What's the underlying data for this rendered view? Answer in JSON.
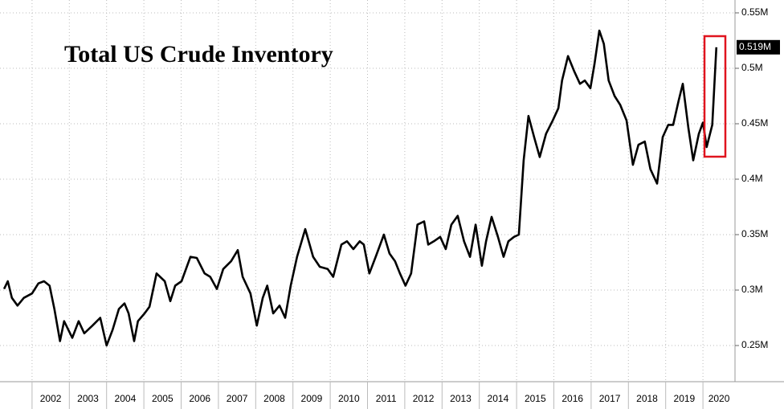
{
  "chart_data": {
    "type": "line",
    "title": "Total US Crude Inventory",
    "x": [
      2001.25,
      2001.35,
      2001.46,
      2001.61,
      2001.78,
      2002.0,
      2002.17,
      2002.32,
      2002.47,
      2002.6,
      2002.75,
      2002.86,
      2003.08,
      2003.25,
      2003.4,
      2003.62,
      2003.83,
      2004.0,
      2004.16,
      2004.33,
      2004.48,
      2004.59,
      2004.74,
      2004.84,
      2005.02,
      2005.15,
      2005.34,
      2005.56,
      2005.71,
      2005.84,
      2006.01,
      2006.25,
      2006.42,
      2006.63,
      2006.78,
      2006.96,
      2007.13,
      2007.34,
      2007.52,
      2007.65,
      2007.86,
      2008.03,
      2008.19,
      2008.31,
      2008.47,
      2008.64,
      2008.79,
      2008.94,
      2009.11,
      2009.33,
      2009.54,
      2009.72,
      2009.93,
      2010.08,
      2010.3,
      2010.45,
      2010.62,
      2010.79,
      2010.9,
      2011.05,
      2011.22,
      2011.44,
      2011.59,
      2011.74,
      2011.87,
      2012.02,
      2012.17,
      2012.34,
      2012.52,
      2012.63,
      2012.78,
      2012.95,
      2013.1,
      2013.25,
      2013.42,
      2013.59,
      2013.75,
      2013.9,
      2014.07,
      2014.18,
      2014.33,
      2014.5,
      2014.65,
      2014.78,
      2014.93,
      2015.06,
      2015.19,
      2015.32,
      2015.47,
      2015.62,
      2015.79,
      2015.97,
      2016.12,
      2016.22,
      2016.38,
      2016.55,
      2016.7,
      2016.83,
      2016.98,
      2017.09,
      2017.22,
      2017.34,
      2017.47,
      2017.63,
      2017.78,
      2017.95,
      2018.12,
      2018.27,
      2018.44,
      2018.59,
      2018.77,
      2018.92,
      2019.07,
      2019.2,
      2019.35,
      2019.46,
      2019.61,
      2019.74,
      2019.89,
      2020.0,
      2020.1,
      2020.25,
      2020.36
    ],
    "values": [
      0.301,
      0.308,
      0.293,
      0.286,
      0.293,
      0.297,
      0.306,
      0.308,
      0.304,
      0.283,
      0.254,
      0.272,
      0.257,
      0.272,
      0.261,
      0.268,
      0.275,
      0.25,
      0.264,
      0.283,
      0.288,
      0.279,
      0.254,
      0.272,
      0.279,
      0.285,
      0.315,
      0.308,
      0.29,
      0.304,
      0.308,
      0.33,
      0.329,
      0.315,
      0.312,
      0.301,
      0.319,
      0.326,
      0.336,
      0.312,
      0.297,
      0.268,
      0.293,
      0.304,
      0.279,
      0.286,
      0.275,
      0.304,
      0.33,
      0.355,
      0.33,
      0.321,
      0.319,
      0.312,
      0.341,
      0.344,
      0.337,
      0.344,
      0.341,
      0.315,
      0.33,
      0.35,
      0.333,
      0.326,
      0.315,
      0.304,
      0.315,
      0.359,
      0.362,
      0.341,
      0.344,
      0.348,
      0.337,
      0.359,
      0.367,
      0.344,
      0.33,
      0.359,
      0.322,
      0.344,
      0.366,
      0.348,
      0.33,
      0.344,
      0.348,
      0.35,
      0.417,
      0.457,
      0.438,
      0.42,
      0.441,
      0.453,
      0.464,
      0.489,
      0.511,
      0.497,
      0.486,
      0.489,
      0.482,
      0.504,
      0.534,
      0.522,
      0.489,
      0.475,
      0.467,
      0.453,
      0.413,
      0.431,
      0.434,
      0.409,
      0.396,
      0.438,
      0.449,
      0.449,
      0.471,
      0.486,
      0.446,
      0.417,
      0.441,
      0.451,
      0.429,
      0.449,
      0.519
    ],
    "color": "#000000",
    "xlim": [
      2001.14,
      2020.86
    ],
    "xticks": [
      2002,
      2003,
      2004,
      2005,
      2006,
      2007,
      2008,
      2009,
      2010,
      2011,
      2012,
      2013,
      2014,
      2015,
      2016,
      2017,
      2018,
      2019,
      2020
    ],
    "ylim": [
      0.2174,
      0.5616
    ],
    "yticks": [
      {
        "value": 0.25,
        "label": "0.25M"
      },
      {
        "value": 0.3,
        "label": "0.3M"
      },
      {
        "value": 0.35,
        "label": "0.35M"
      },
      {
        "value": 0.4,
        "label": "0.4M"
      },
      {
        "value": 0.45,
        "label": "0.45M"
      },
      {
        "value": 0.5,
        "label": "0.5M"
      },
      {
        "value": 0.55,
        "label": "0.55M"
      }
    ],
    "annotation": {
      "value": 0.519,
      "label": "0.519M"
    },
    "grid": true
  }
}
